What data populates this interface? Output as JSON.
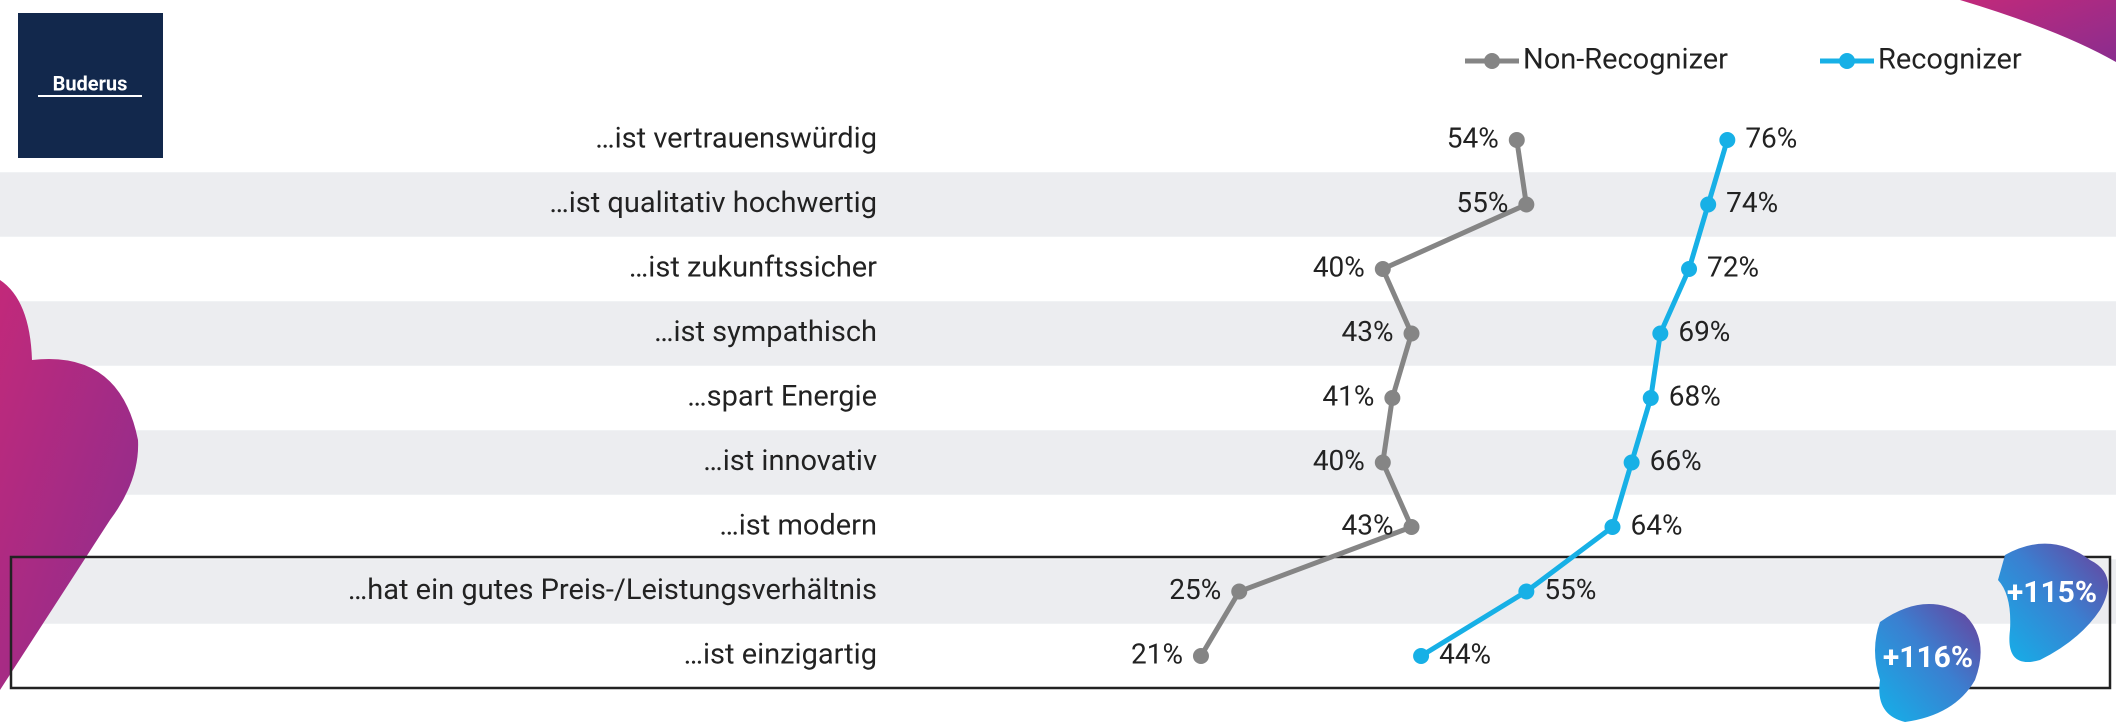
{
  "chart_data": {
    "type": "line",
    "logo": "Buderus",
    "categories": [
      "…ist vertrauenswürdig",
      "…ist qualitativ hochwertig",
      "…ist zukunftssicher",
      "…ist sympathisch",
      "…spart Energie",
      "…ist innovativ",
      "…ist modern",
      "…hat ein gutes Preis-/Leistungsverhältnis",
      "…ist einzigartig"
    ],
    "series": [
      {
        "name": "Non-Recognizer",
        "color": "#858585",
        "values": [
          54,
          55,
          40,
          43,
          41,
          40,
          43,
          25,
          21
        ],
        "value_labels": [
          "54%",
          "55%",
          "40%",
          "43%",
          "41%",
          "40%",
          "43%",
          "25%",
          "21%"
        ]
      },
      {
        "name": "Recognizer",
        "color": "#17b0e6",
        "values": [
          76,
          74,
          72,
          69,
          68,
          66,
          64,
          55,
          44
        ],
        "value_labels": [
          "76%",
          "74%",
          "72%",
          "69%",
          "68%",
          "66%",
          "64%",
          "55%",
          "44%"
        ]
      }
    ],
    "xlim": [
      0,
      100
    ],
    "legend": "top-right",
    "annotations": [
      "+115%",
      "+116%"
    ]
  }
}
